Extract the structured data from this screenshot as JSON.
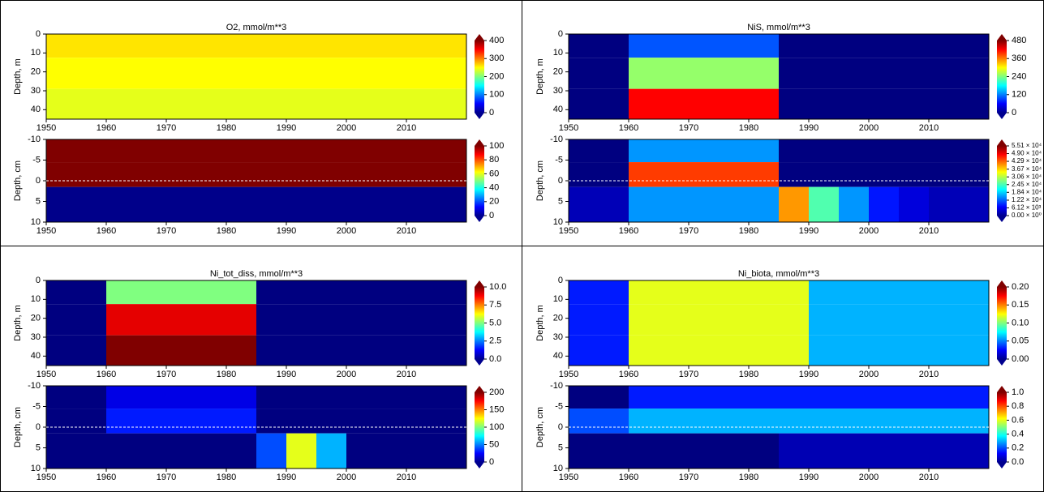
{
  "chart_data": [
    {
      "type": "heatmap",
      "title": "O2, mmol/m**3",
      "ylabel": "Depth, m",
      "xlim": [
        1950,
        2020
      ],
      "xticks": [
        1950,
        1960,
        1970,
        1980,
        1990,
        2000,
        2010
      ],
      "ylim": [
        45,
        0
      ],
      "yticks": [
        0,
        10,
        20,
        30,
        40
      ],
      "clim": [
        0,
        400
      ],
      "cticks": [
        0,
        100,
        200,
        300,
        400
      ],
      "x": [
        1952.5,
        1957.5,
        1962.5,
        1967.5,
        1972.5,
        1977.5,
        1982.5,
        1987.5,
        1992.5,
        1997.5,
        2002.5,
        2007.5,
        2012.5,
        2017.5
      ],
      "y": [
        5,
        20,
        38
      ],
      "z": [
        [
          260,
          260,
          260,
          260,
          260,
          260,
          260,
          260,
          260,
          260,
          260,
          260,
          260,
          260
        ],
        [
          250,
          250,
          250,
          250,
          250,
          250,
          250,
          250,
          250,
          250,
          250,
          250,
          250,
          250
        ],
        [
          240,
          240,
          240,
          240,
          240,
          240,
          240,
          240,
          240,
          240,
          240,
          240,
          240,
          240
        ]
      ]
    },
    {
      "type": "heatmap",
      "ylabel": "Depth, cm",
      "xlim": [
        1950,
        2020
      ],
      "xticks": [
        1950,
        1960,
        1970,
        1980,
        1990,
        2000,
        2010
      ],
      "ylim": [
        10,
        -10
      ],
      "yticks": [
        -10,
        -5,
        0,
        5,
        10
      ],
      "hline": 0,
      "clim": [
        0,
        100
      ],
      "cticks": [
        0,
        20,
        40,
        60,
        80,
        100
      ],
      "x": [
        1952.5,
        1957.5,
        1962.5,
        1967.5,
        1972.5,
        1977.5,
        1982.5,
        1987.5,
        1992.5,
        1997.5,
        2002.5,
        2007.5,
        2012.5,
        2017.5
      ],
      "y": [
        -7,
        -2,
        5
      ],
      "z": [
        [
          100,
          100,
          100,
          100,
          100,
          100,
          100,
          100,
          100,
          100,
          100,
          100,
          100,
          100
        ],
        [
          100,
          100,
          100,
          100,
          100,
          100,
          100,
          100,
          100,
          100,
          100,
          100,
          100,
          100
        ],
        [
          1,
          1,
          1,
          1,
          1,
          1,
          1,
          1,
          1,
          1,
          1,
          1,
          1,
          1
        ]
      ]
    },
    {
      "type": "heatmap",
      "title": "NiS, mmol/m**3",
      "ylabel": "Depth, m",
      "xlim": [
        1950,
        2020
      ],
      "xticks": [
        1950,
        1960,
        1970,
        1980,
        1990,
        2000,
        2010
      ],
      "ylim": [
        45,
        0
      ],
      "yticks": [
        0,
        10,
        20,
        30,
        40
      ],
      "clim": [
        0,
        480
      ],
      "cticks": [
        0,
        120,
        240,
        360,
        480
      ],
      "x": [
        1952.5,
        1957.5,
        1962.5,
        1967.5,
        1972.5,
        1977.5,
        1982.5,
        1987.5,
        1992.5,
        1997.5,
        2002.5,
        2007.5,
        2012.5,
        2017.5
      ],
      "y": [
        5,
        20,
        38
      ],
      "z": [
        [
          0,
          0,
          100,
          100,
          100,
          100,
          100,
          0,
          0,
          0,
          0,
          0,
          0,
          0
        ],
        [
          0,
          0,
          250,
          250,
          250,
          250,
          250,
          0,
          0,
          0,
          0,
          0,
          0,
          0
        ],
        [
          0,
          0,
          420,
          420,
          420,
          420,
          420,
          0,
          0,
          0,
          0,
          0,
          0,
          0
        ]
      ]
    },
    {
      "type": "heatmap",
      "ylabel": "Depth, cm",
      "xlim": [
        1950,
        2020
      ],
      "xticks": [
        1950,
        1960,
        1970,
        1980,
        1990,
        2000,
        2010
      ],
      "ylim": [
        10,
        -10
      ],
      "yticks": [
        -10,
        -5,
        0,
        5,
        10
      ],
      "hline": 0,
      "clim": [
        0,
        55100
      ],
      "cticks": [
        {
          "value": 0,
          "label": "0.00 × 10⁰"
        },
        {
          "value": 6120,
          "label": "6.12 × 10³"
        },
        {
          "value": 12200,
          "label": "1.22 × 10⁴"
        },
        {
          "value": 18400,
          "label": "1.84 × 10⁴"
        },
        {
          "value": 24500,
          "label": "2.45 × 10⁴"
        },
        {
          "value": 30600,
          "label": "3.06 × 10⁴"
        },
        {
          "value": 36700,
          "label": "3.67 × 10⁴"
        },
        {
          "value": 42900,
          "label": "4.29 × 10⁴"
        },
        {
          "value": 49000,
          "label": "4.90 × 10⁴"
        },
        {
          "value": 55100,
          "label": "5.51 × 10⁴"
        }
      ],
      "x": [
        1952.5,
        1957.5,
        1962.5,
        1967.5,
        1972.5,
        1977.5,
        1982.5,
        1987.5,
        1992.5,
        1997.5,
        2002.5,
        2007.5,
        2012.5,
        2017.5
      ],
      "y": [
        -7,
        -2,
        5
      ],
      "z": [
        [
          0,
          0,
          15000,
          15000,
          15000,
          15000,
          15000,
          0,
          0,
          0,
          0,
          0,
          0,
          0
        ],
        [
          0,
          0,
          45000,
          45000,
          45000,
          45000,
          45000,
          0,
          0,
          0,
          0,
          0,
          0,
          0
        ],
        [
          3000,
          3000,
          15000,
          15000,
          15000,
          15000,
          15000,
          40000,
          25000,
          15000,
          8000,
          5000,
          3000,
          3000
        ]
      ]
    },
    {
      "type": "heatmap",
      "title": "Ni_tot_diss, mmol/m**3",
      "ylabel": "Depth, m",
      "xlim": [
        1950,
        2020
      ],
      "xticks": [
        1950,
        1960,
        1970,
        1980,
        1990,
        2000,
        2010
      ],
      "ylim": [
        45,
        0
      ],
      "yticks": [
        0,
        10,
        20,
        30,
        40
      ],
      "clim": [
        0,
        10
      ],
      "cticks": [
        {
          "value": 0,
          "label": "0.0"
        },
        2.5,
        {
          "value": 5,
          "label": "5.0"
        },
        7.5,
        {
          "value": 10,
          "label": "10.0"
        }
      ],
      "x": [
        1952.5,
        1957.5,
        1962.5,
        1967.5,
        1972.5,
        1977.5,
        1982.5,
        1987.5,
        1992.5,
        1997.5,
        2002.5,
        2007.5,
        2012.5,
        2017.5
      ],
      "y": [
        5,
        20,
        38
      ],
      "z": [
        [
          0,
          0,
          5,
          5,
          5,
          5,
          5,
          0,
          0,
          0,
          0,
          0,
          0,
          0
        ],
        [
          0,
          0,
          9,
          9,
          9,
          9,
          9,
          0,
          0,
          0,
          0,
          0,
          0,
          0
        ],
        [
          0,
          0,
          10,
          10,
          10,
          10,
          10,
          0,
          0,
          0,
          0,
          0,
          0,
          0
        ]
      ]
    },
    {
      "type": "heatmap",
      "ylabel": "Depth, cm",
      "xlim": [
        1950,
        2020
      ],
      "xticks": [
        1950,
        1960,
        1970,
        1980,
        1990,
        2000,
        2010
      ],
      "ylim": [
        10,
        -10
      ],
      "yticks": [
        -10,
        -5,
        0,
        5,
        10
      ],
      "hline": 0,
      "clim": [
        0,
        200
      ],
      "cticks": [
        0,
        50,
        100,
        150,
        200
      ],
      "x": [
        1952.5,
        1957.5,
        1962.5,
        1967.5,
        1972.5,
        1977.5,
        1982.5,
        1987.5,
        1992.5,
        1997.5,
        2002.5,
        2007.5,
        2012.5,
        2017.5
      ],
      "y": [
        -7,
        -2,
        5
      ],
      "z": [
        [
          0,
          0,
          20,
          20,
          20,
          20,
          20,
          0,
          0,
          0,
          0,
          0,
          0,
          0
        ],
        [
          0,
          0,
          30,
          30,
          30,
          30,
          30,
          0,
          0,
          0,
          0,
          0,
          0,
          0
        ],
        [
          0,
          0,
          0,
          0,
          0,
          0,
          0,
          40,
          120,
          60,
          0,
          0,
          0,
          0
        ]
      ]
    },
    {
      "type": "heatmap",
      "title": "Ni_biota, mmol/m**3",
      "ylabel": "Depth, m",
      "xlim": [
        1950,
        2020
      ],
      "xticks": [
        1950,
        1960,
        1970,
        1980,
        1990,
        2000,
        2010
      ],
      "ylim": [
        45,
        0
      ],
      "yticks": [
        0,
        10,
        20,
        30,
        40
      ],
      "clim": [
        0,
        0.2
      ],
      "cticks": [
        {
          "value": 0,
          "label": "0.00"
        },
        0.05,
        {
          "value": 0.1,
          "label": "0.10"
        },
        0.15,
        {
          "value": 0.2,
          "label": "0.20"
        }
      ],
      "x": [
        1952.5,
        1957.5,
        1962.5,
        1967.5,
        1972.5,
        1977.5,
        1982.5,
        1987.5,
        1992.5,
        1997.5,
        2002.5,
        2007.5,
        2012.5,
        2017.5
      ],
      "y": [
        5,
        20,
        38
      ],
      "z": [
        [
          0.03,
          0.03,
          0.12,
          0.12,
          0.12,
          0.12,
          0.12,
          0.12,
          0.06,
          0.06,
          0.06,
          0.06,
          0.06,
          0.06
        ],
        [
          0.03,
          0.03,
          0.12,
          0.12,
          0.12,
          0.12,
          0.12,
          0.12,
          0.06,
          0.06,
          0.06,
          0.06,
          0.06,
          0.06
        ],
        [
          0.03,
          0.03,
          0.12,
          0.12,
          0.12,
          0.12,
          0.12,
          0.12,
          0.06,
          0.06,
          0.06,
          0.06,
          0.06,
          0.06
        ]
      ]
    },
    {
      "type": "heatmap",
      "ylabel": "Depth, cm",
      "xlim": [
        1950,
        2020
      ],
      "xticks": [
        1950,
        1960,
        1970,
        1980,
        1990,
        2000,
        2010
      ],
      "ylim": [
        10,
        -10
      ],
      "yticks": [
        -10,
        -5,
        0,
        5,
        10
      ],
      "hline": 0,
      "clim": [
        0,
        1
      ],
      "cticks": [
        {
          "value": 0,
          "label": "0.0"
        },
        0.2,
        0.4,
        0.6,
        0.8,
        {
          "value": 1,
          "label": "1.0"
        }
      ],
      "x": [
        1952.5,
        1957.5,
        1962.5,
        1967.5,
        1972.5,
        1977.5,
        1982.5,
        1987.5,
        1992.5,
        1997.5,
        2002.5,
        2007.5,
        2012.5,
        2017.5
      ],
      "y": [
        -7,
        -2,
        5
      ],
      "z": [
        [
          0,
          0,
          0.15,
          0.15,
          0.15,
          0.15,
          0.15,
          0.15,
          0.15,
          0.15,
          0.15,
          0.15,
          0.15,
          0.15
        ],
        [
          0.2,
          0.2,
          0.3,
          0.3,
          0.3,
          0.3,
          0.3,
          0.3,
          0.3,
          0.3,
          0.3,
          0.3,
          0.3,
          0.3
        ],
        [
          0,
          0,
          0,
          0,
          0,
          0,
          0,
          0.05,
          0.05,
          0.05,
          0.05,
          0.05,
          0.05,
          0.05
        ]
      ]
    }
  ]
}
